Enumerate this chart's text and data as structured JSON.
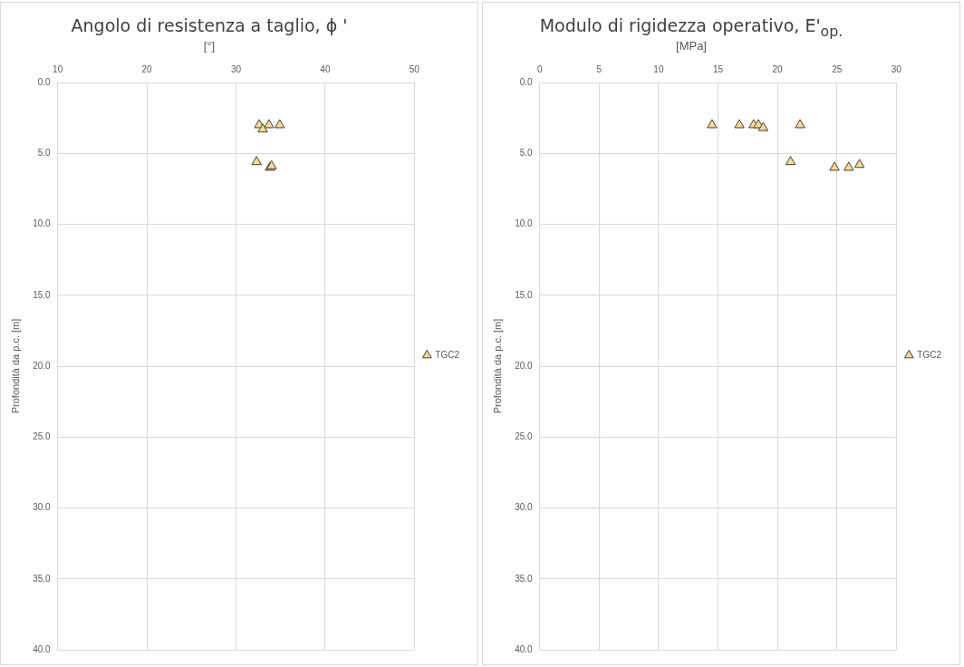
{
  "chart_data": [
    {
      "type": "scatter",
      "title": "Angolo di resistenza a taglio, ϕ '",
      "subtitle": "[°]",
      "ylabel": "Profondità da p.c. [m]",
      "series": [
        {
          "name": "TGC2",
          "color": "#ffd98a",
          "x": [
            32.6,
            33.0,
            33.2,
            33.7,
            34.9,
            33.0,
            32.3,
            33.8,
            34.0
          ],
          "values": [
            3.0,
            null,
            null,
            3.0,
            3.0,
            3.3,
            5.6,
            6.0,
            5.9
          ]
        }
      ],
      "xlim": [
        10,
        50
      ],
      "xticks": [
        10,
        20,
        30,
        40,
        50
      ],
      "ylim": [
        40,
        0
      ],
      "yticks": [
        {
          "value": 0,
          "label": "0.0"
        },
        {
          "value": 5,
          "label": "5.0"
        },
        {
          "value": 10,
          "label": "10.0"
        },
        {
          "value": 15,
          "label": "15.0"
        },
        {
          "value": 20,
          "label": "20.0"
        },
        {
          "value": 25,
          "label": "25.0"
        },
        {
          "value": 30,
          "label": "30.0"
        },
        {
          "value": 35,
          "label": "35.0"
        },
        {
          "value": 40,
          "label": "40.0"
        }
      ],
      "grid": true,
      "legend": "right",
      "marker": "triangle"
    },
    {
      "type": "scatter",
      "title": "Modulo di rigidezza operativo, E'$_{op.}$",
      "subtitle": "[MPa]",
      "ylabel": "Profondità da p.c. [m]",
      "series": [
        {
          "name": "TGC2",
          "color": "#ffd98a",
          "x": [
            14.5,
            16.8,
            18.0,
            18.4,
            18.8,
            21.9,
            21.1,
            24.8,
            26.0,
            26.9
          ],
          "values": [
            3.0,
            3.0,
            3.0,
            3.0,
            3.2,
            3.0,
            5.6,
            6.0,
            6.0,
            5.8
          ]
        }
      ],
      "xlim": [
        0,
        30
      ],
      "xticks": [
        0,
        5,
        10,
        15,
        20,
        25,
        30
      ],
      "ylim": [
        40,
        0
      ],
      "yticks": [
        {
          "value": 0,
          "label": "0.0"
        },
        {
          "value": 5,
          "label": "5.0"
        },
        {
          "value": 10,
          "label": "10.0"
        },
        {
          "value": 15,
          "label": "15.0"
        },
        {
          "value": 20,
          "label": "20.0"
        },
        {
          "value": 25,
          "label": "25.0"
        },
        {
          "value": 30,
          "label": "30.0"
        },
        {
          "value": 35,
          "label": "35.0"
        },
        {
          "value": 40,
          "label": "40.0"
        }
      ],
      "grid": true,
      "legend": "right",
      "marker": "triangle"
    }
  ]
}
